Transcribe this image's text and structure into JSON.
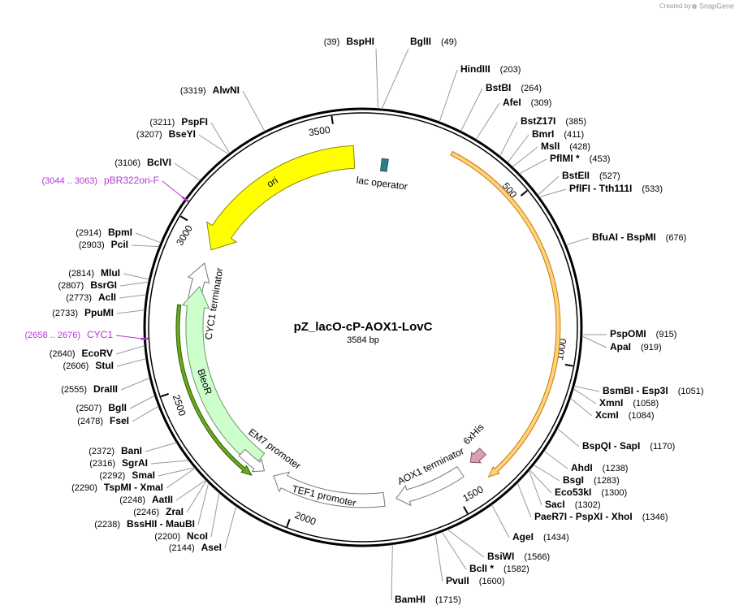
{
  "header": {
    "credit": "Created by",
    "brand": "SnapGene"
  },
  "map": {
    "title": "pZ_lacO-cP-AOX1-LovC",
    "size": "3584 bp",
    "ruler": [
      500,
      1000,
      1500,
      2000,
      2500,
      3000,
      3500
    ],
    "features": [
      {
        "name": "ori"
      },
      {
        "name": "lac operator"
      },
      {
        "name": "CYC1 terminator"
      },
      {
        "name": "BleoR"
      },
      {
        "name": "EM7 promoter"
      },
      {
        "name": "TEF1 promoter"
      },
      {
        "name": "AOX1 terminator"
      },
      {
        "name": "6xHis"
      }
    ],
    "labels_right": [
      {
        "name": "BglII",
        "site": "(49)"
      },
      {
        "name": "HindIII",
        "site": "(203)"
      },
      {
        "name": "BstBI",
        "site": "(264)"
      },
      {
        "name": "AfeI",
        "site": "(309)"
      },
      {
        "name": "BstZ17I",
        "site": "(385)"
      },
      {
        "name": "BmrI",
        "site": "(411)"
      },
      {
        "name": "MslI",
        "site": "(428)"
      },
      {
        "name": "PflMI *",
        "site": "(453)"
      },
      {
        "name": "BstEII",
        "site": "(527)"
      },
      {
        "name": "PflFI - Tth111I",
        "site": "(533)"
      },
      {
        "name": "BfuAI - BspMI",
        "site": "(676)"
      },
      {
        "name": "PspOMI",
        "site": "(915)"
      },
      {
        "name": "ApaI",
        "site": "(919)"
      },
      {
        "name": "BsmBI - Esp3I",
        "site": "(1051)"
      },
      {
        "name": "XmnI",
        "site": "(1058)"
      },
      {
        "name": "XcmI",
        "site": "(1084)"
      },
      {
        "name": "BspQI - SapI",
        "site": "(1170)"
      },
      {
        "name": "AhdI",
        "site": "(1238)"
      },
      {
        "name": "BsgI",
        "site": "(1283)"
      },
      {
        "name": "Eco53kI",
        "site": "(1300)"
      },
      {
        "name": "SacI",
        "site": "(1302)"
      },
      {
        "name": "PaeR7I - PspXI - XhoI",
        "site": "(1346)"
      },
      {
        "name": "AgeI",
        "site": "(1434)"
      },
      {
        "name": "BsiWI",
        "site": "(1566)"
      },
      {
        "name": "BclI *",
        "site": "(1582)"
      },
      {
        "name": "PvuII",
        "site": "(1600)"
      },
      {
        "name": "BamHI",
        "site": "(1715)"
      }
    ],
    "labels_left": [
      {
        "name": "BspHI",
        "site": "(39)"
      },
      {
        "name": "AlwNI",
        "site": "(3319)"
      },
      {
        "name": "PspFI",
        "site": "(3211)"
      },
      {
        "name": "BseYI",
        "site": "(3207)"
      },
      {
        "name": "BclVI",
        "site": "(3106)"
      },
      {
        "name": "pBR322ori-F",
        "site": "(3044 .. 3063)",
        "color": "#b336d6"
      },
      {
        "name": "BpmI",
        "site": "(2914)"
      },
      {
        "name": "PciI",
        "site": "(2903)"
      },
      {
        "name": "MluI",
        "site": "(2814)"
      },
      {
        "name": "BsrGI",
        "site": "(2807)"
      },
      {
        "name": "AclI",
        "site": "(2773)"
      },
      {
        "name": "PpuMI",
        "site": "(2733)"
      },
      {
        "name": "CYC1",
        "site": "(2658 .. 2676)",
        "color": "#b336d6"
      },
      {
        "name": "EcoRV",
        "site": "(2640)"
      },
      {
        "name": "StuI",
        "site": "(2606)"
      },
      {
        "name": "DraIII",
        "site": "(2555)"
      },
      {
        "name": "BglI",
        "site": "(2507)"
      },
      {
        "name": "FseI",
        "site": "(2478)"
      },
      {
        "name": "BanI",
        "site": "(2372)"
      },
      {
        "name": "SgrAI",
        "site": "(2316)"
      },
      {
        "name": "SmaI",
        "site": "(2292)"
      },
      {
        "name": "TspMI - XmaI",
        "site": "(2290)"
      },
      {
        "name": "AatII",
        "site": "(2248)"
      },
      {
        "name": "ZraI",
        "site": "(2246)"
      },
      {
        "name": "BssHII - MauBI",
        "site": "(2238)"
      },
      {
        "name": "NcoI",
        "site": "(2200)"
      },
      {
        "name": "AseI",
        "site": "(2144)"
      }
    ]
  }
}
